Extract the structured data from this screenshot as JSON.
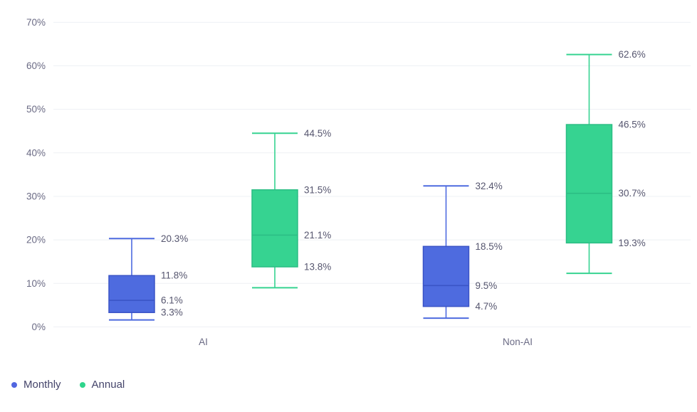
{
  "chart_data": {
    "type": "boxplot",
    "title": "",
    "categories": [
      "AI",
      "Non-AI"
    ],
    "y_axis": {
      "min": 0,
      "max": 70,
      "ticks": [
        "0%",
        "10%",
        "20%",
        "30%",
        "40%",
        "50%",
        "60%",
        "70%"
      ],
      "grid": true
    },
    "series": [
      {
        "name": "Monthly",
        "color": "#4e6bdf",
        "border_color": "#3a54c6",
        "boxes": [
          {
            "category": "AI",
            "low": 1.6,
            "q1": 3.3,
            "median": 6.1,
            "q3": 11.8,
            "high": 20.3,
            "labels": {
              "high": "20.3%",
              "q3": "11.8%",
              "median": "6.1%",
              "q1": "3.3%"
            }
          },
          {
            "category": "Non-AI",
            "low": 2.0,
            "q1": 4.7,
            "median": 9.5,
            "q3": 18.5,
            "high": 32.4,
            "labels": {
              "high": "32.4%",
              "q3": "18.5%",
              "median": "9.5%",
              "q1": "4.7%"
            }
          }
        ]
      },
      {
        "name": "Annual",
        "color": "#36d391",
        "border_color": "#2bbd84",
        "boxes": [
          {
            "category": "AI",
            "low": 9.0,
            "q1": 13.8,
            "median": 21.1,
            "q3": 31.5,
            "high": 44.5,
            "labels": {
              "high": "44.5%",
              "q3": "31.5%",
              "median": "21.1%",
              "q1": "13.8%"
            }
          },
          {
            "category": "Non-AI",
            "low": 12.3,
            "q1": 19.3,
            "median": 30.7,
            "q3": 46.5,
            "high": 62.6,
            "labels": {
              "high": "62.6%",
              "q3": "46.5%",
              "median": "30.7%",
              "q1": "19.3%"
            }
          }
        ]
      }
    ],
    "legend": {
      "position": "bottom-left",
      "items": [
        {
          "label": "Monthly",
          "color": "#5166e0"
        },
        {
          "label": "Annual",
          "color": "#2fd58c"
        }
      ]
    },
    "colors": {
      "grid_line": "#eef0f4",
      "tick_label": "#6b6b85",
      "value_label": "#56566f",
      "category_label": "#6b6b85"
    }
  }
}
